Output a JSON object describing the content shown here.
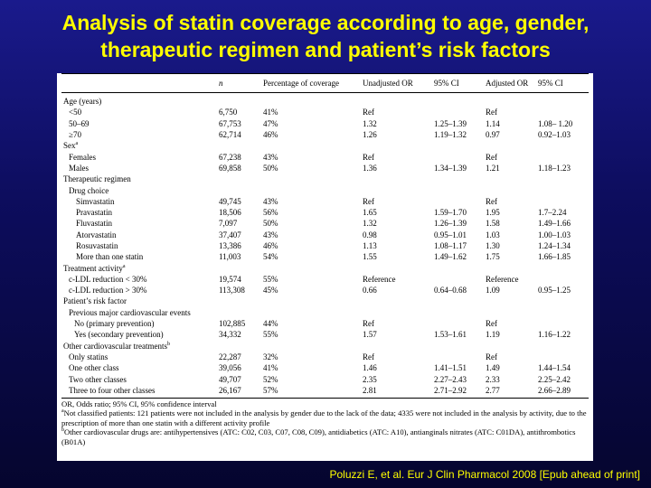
{
  "title": {
    "line1": "Analysis of statin coverage according to age, gender,",
    "line2": "therapeutic regimen and patient’s risk factors"
  },
  "table": {
    "headers": [
      "",
      "n",
      "Percentage of coverage",
      "Unadjusted OR",
      "95% CI",
      "Adjusted OR",
      "95% CI"
    ],
    "rows": [
      {
        "label": "Age (years)",
        "indent": 0,
        "n": "",
        "pct": "",
        "uor": "",
        "uci": "",
        "aor": "",
        "aci": ""
      },
      {
        "label": "<50",
        "indent": 1,
        "n": "6,750",
        "pct": "41%",
        "uor": "Ref",
        "uci": "",
        "aor": "Ref",
        "aci": ""
      },
      {
        "label": "50–69",
        "indent": 1,
        "n": "67,753",
        "pct": "47%",
        "uor": "1.32",
        "uci": "1.25–1.39",
        "aor": "1.14",
        "aci": "1.08– 1.20"
      },
      {
        "label": "≥70",
        "indent": 1,
        "n": "62,714",
        "pct": "46%",
        "uor": "1.26",
        "uci": "1.19–1.32",
        "aor": "0.97",
        "aci": "0.92–1.03"
      },
      {
        "label": "Sex",
        "sup": "a",
        "indent": 0,
        "n": "",
        "pct": "",
        "uor": "",
        "uci": "",
        "aor": "",
        "aci": ""
      },
      {
        "label": "Females",
        "indent": 1,
        "n": "67,238",
        "pct": "43%",
        "uor": "Ref",
        "uci": "",
        "aor": "Ref",
        "aci": ""
      },
      {
        "label": "Males",
        "indent": 1,
        "n": "69,858",
        "pct": "50%",
        "uor": "1.36",
        "uci": "1.34–1.39",
        "aor": "1.21",
        "aci": "1.18–1.23"
      },
      {
        "label": "Therapeutic regimen",
        "indent": 0,
        "n": "",
        "pct": "",
        "uor": "",
        "uci": "",
        "aor": "",
        "aci": ""
      },
      {
        "label": "Drug choice",
        "indent": 1,
        "n": "",
        "pct": "",
        "uor": "",
        "uci": "",
        "aor": "",
        "aci": ""
      },
      {
        "label": "Simvastatin",
        "indent": 2,
        "n": "49,745",
        "pct": "43%",
        "uor": "Ref",
        "uci": "",
        "aor": "Ref",
        "aci": ""
      },
      {
        "label": "Pravastatin",
        "indent": 2,
        "n": "18,506",
        "pct": "56%",
        "uor": "1.65",
        "uci": "1.59–1.70",
        "aor": "1.95",
        "aci": "1.7–2.24"
      },
      {
        "label": "Fluvastatin",
        "indent": 2,
        "n": "7,097",
        "pct": "50%",
        "uor": "1.32",
        "uci": "1.26–1.39",
        "aor": "1.58",
        "aci": "1.49–1.66"
      },
      {
        "label": "Atorvastatin",
        "indent": 2,
        "n": "37,407",
        "pct": "43%",
        "uor": "0.98",
        "uci": "0.95–1.01",
        "aor": "1.03",
        "aci": "1.00–1.03"
      },
      {
        "label": "Rosuvastatin",
        "indent": 2,
        "n": "13,386",
        "pct": "46%",
        "uor": "1.13",
        "uci": "1.08–1.17",
        "aor": "1.30",
        "aci": "1.24–1.34"
      },
      {
        "label": "More than one statin",
        "indent": 2,
        "n": "11,003",
        "pct": "54%",
        "uor": "1.55",
        "uci": "1.49–1.62",
        "aor": "1.75",
        "aci": "1.66–1.85"
      },
      {
        "label": "Treatment activity",
        "sup": "a",
        "indent": 0,
        "n": "",
        "pct": "",
        "uor": "",
        "uci": "",
        "aor": "",
        "aci": ""
      },
      {
        "label": "c-LDL reduction < 30%",
        "indent": 1,
        "n": "19,574",
        "pct": "55%",
        "uor": "Reference",
        "uci": "",
        "aor": "Reference",
        "aci": ""
      },
      {
        "label": "c-LDL reduction > 30%",
        "indent": 1,
        "n": "113,308",
        "pct": "45%",
        "uor": "0.66",
        "uci": "0.64–0.68",
        "aor": "1.09",
        "aci": "0.95–1.25"
      },
      {
        "label": "Patient’s risk factor",
        "indent": 0,
        "n": "",
        "pct": "",
        "uor": "",
        "uci": "",
        "aor": "",
        "aci": ""
      },
      {
        "label": "Previous major cardiovascular events",
        "indent": 1,
        "n": "",
        "pct": "",
        "uor": "",
        "uci": "",
        "aor": "",
        "aci": ""
      },
      {
        "label": "No (primary prevention)",
        "indent": 3,
        "n": "102,885",
        "pct": "44%",
        "uor": "Ref",
        "uci": "",
        "aor": "Ref",
        "aci": ""
      },
      {
        "label": "Yes (secondary prevention)",
        "indent": 3,
        "n": "34,332",
        "pct": "55%",
        "uor": "1.57",
        "uci": "1.53–1.61",
        "aor": "1.19",
        "aci": "1.16–1.22"
      },
      {
        "label": "Other cardiovascular treatments",
        "sup": "b",
        "indent": 0,
        "n": "",
        "pct": "",
        "uor": "",
        "uci": "",
        "aor": "",
        "aci": ""
      },
      {
        "label": "Only statins",
        "indent": 1,
        "n": "22,287",
        "pct": "32%",
        "uor": "Ref",
        "uci": "",
        "aor": "Ref",
        "aci": ""
      },
      {
        "label": "One other class",
        "indent": 1,
        "n": "39,056",
        "pct": "41%",
        "uor": "1.46",
        "uci": "1.41–1.51",
        "aor": "1.49",
        "aci": "1.44–1.54"
      },
      {
        "label": "Two other classes",
        "indent": 1,
        "n": "49,707",
        "pct": "52%",
        "uor": "2.35",
        "uci": "2.27–2.43",
        "aor": "2.33",
        "aci": "2.25–2.42"
      },
      {
        "label": "Three to four other classes",
        "indent": 1,
        "n": "26,167",
        "pct": "57%",
        "uor": "2.81",
        "uci": "2.71–2.92",
        "aor": "2.77",
        "aci": "2.66–2.89"
      }
    ]
  },
  "footnotes": {
    "abbrev": "OR, Odds ratio; 95% CI, 95% confidence interval",
    "note_a_mark": "a",
    "note_a": "Not classified patients: 121 patients were not included in the analysis by gender due to the lack of the data; 4335 were not included in the analysis by activity, due to the prescription of more than one statin with a different activity profile",
    "note_b_mark": "b",
    "note_b": "Other cardiovascular drugs are: antihypertensives (ATC: C02, C03, C07, C08, C09), antidiabetics (ATC: A10), antianginals nitrates (ATC: C01DA), antithrombotics (B01A)"
  },
  "citation": "Poluzzi E, et al. Eur J Clin Pharmacol 2008 [Epub ahead of print]",
  "colors": {
    "title": "#ffff00",
    "background": "#0d0d5e",
    "panel": "#ffffff"
  }
}
